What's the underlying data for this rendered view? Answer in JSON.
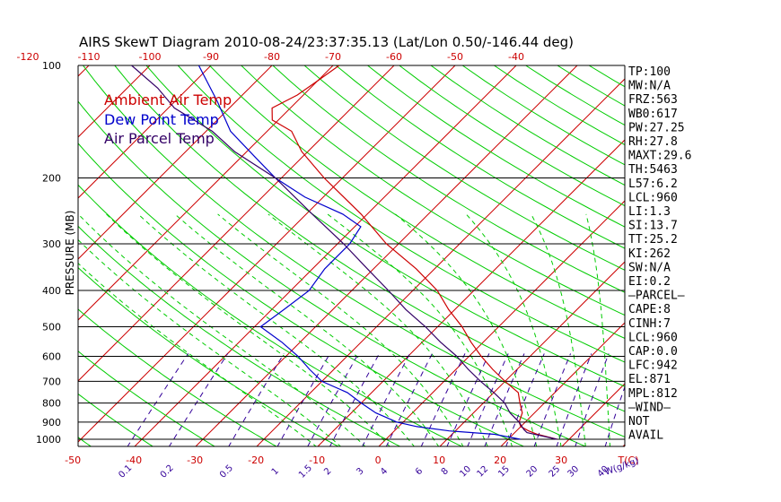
{
  "chart_data": {
    "type": "line",
    "title": "AIRS SkewT Diagram 2010-08-24/23:37:35.13 (Lat/Lon 0.50/-146.44 deg)",
    "ylabel": "PRESSURE (MB)",
    "xlabel": "T(C)",
    "mixing_ratio_label": "W(g/kg)",
    "pressure_axis": "log",
    "ylim": [
      1050,
      100
    ],
    "pressure_ticks": [
      100,
      200,
      300,
      400,
      500,
      600,
      700,
      800,
      900,
      1000
    ],
    "bottom_temperature_ticks": [
      -50,
      -40,
      -30,
      -20,
      -10,
      0,
      10,
      20,
      30
    ],
    "top_temperature_ticks": [
      -120,
      -110,
      -100,
      -90,
      -80,
      -70,
      -60,
      -50,
      -40
    ],
    "mixing_ratio_ticks": [
      "0.1",
      "0.2",
      "0.5",
      "1",
      "1.5",
      "2",
      "3",
      "4",
      "6",
      "8",
      "10",
      "12",
      "15",
      "20",
      "25",
      "30",
      "40"
    ],
    "legend": [
      "Ambient Air Temp",
      "Dew Point Temp",
      "Air Parcel Temp"
    ],
    "legend_position": "top-left",
    "colors": {
      "ambient": "#cc0000",
      "dewpoint": "#0000cc",
      "parcel": "#330066",
      "isotherm": "#cc0000",
      "dry_adiabat": "#00cc00",
      "moist_adiabat": "#00cc00",
      "mixing_ratio": "#330099",
      "axis_labels": "#cc0000",
      "mixing_labels": "#330099",
      "pressure_lines": "#000000"
    },
    "series": [
      {
        "name": "Ambient Air Temp",
        "points": [
          [
            1000,
            28
          ],
          [
            970,
            24
          ],
          [
            950,
            22
          ],
          [
            925,
            20
          ],
          [
            900,
            19
          ],
          [
            850,
            18
          ],
          [
            800,
            16
          ],
          [
            750,
            14
          ],
          [
            700,
            10
          ],
          [
            650,
            6
          ],
          [
            600,
            2
          ],
          [
            550,
            -2
          ],
          [
            500,
            -6
          ],
          [
            450,
            -11
          ],
          [
            400,
            -16
          ],
          [
            350,
            -23
          ],
          [
            300,
            -32
          ],
          [
            250,
            -41
          ],
          [
            200,
            -53
          ],
          [
            170,
            -61
          ],
          [
            150,
            -66
          ],
          [
            140,
            -71
          ],
          [
            130,
            -73
          ],
          [
            120,
            -71
          ],
          [
            110,
            -70
          ],
          [
            100,
            -69
          ]
        ]
      },
      {
        "name": "Dew Point Temp",
        "points": [
          [
            1000,
            22
          ],
          [
            970,
            17
          ],
          [
            950,
            9
          ],
          [
            925,
            3
          ],
          [
            900,
            -1
          ],
          [
            850,
            -6
          ],
          [
            800,
            -10
          ],
          [
            750,
            -14
          ],
          [
            700,
            -20
          ],
          [
            650,
            -24
          ],
          [
            600,
            -28
          ],
          [
            550,
            -33
          ],
          [
            500,
            -39
          ],
          [
            450,
            -38
          ],
          [
            400,
            -37
          ],
          [
            350,
            -38
          ],
          [
            300,
            -38
          ],
          [
            270,
            -39
          ],
          [
            250,
            -44
          ],
          [
            225,
            -53
          ],
          [
            200,
            -61
          ],
          [
            175,
            -68
          ],
          [
            150,
            -76
          ],
          [
            125,
            -83
          ],
          [
            100,
            -92
          ]
        ]
      },
      {
        "name": "Air Parcel Temp",
        "points": [
          [
            1000,
            28
          ],
          [
            960,
            22
          ],
          [
            942,
            21
          ],
          [
            900,
            19
          ],
          [
            850,
            16
          ],
          [
            800,
            13.5
          ],
          [
            750,
            10
          ],
          [
            700,
            6
          ],
          [
            650,
            2
          ],
          [
            600,
            -2
          ],
          [
            550,
            -7
          ],
          [
            500,
            -12
          ],
          [
            450,
            -18
          ],
          [
            400,
            -24
          ],
          [
            350,
            -31
          ],
          [
            300,
            -39
          ],
          [
            250,
            -49
          ],
          [
            200,
            -61
          ],
          [
            170,
            -72
          ],
          [
            150,
            -79
          ],
          [
            130,
            -89
          ],
          [
            115,
            -95
          ],
          [
            100,
            -103
          ]
        ]
      }
    ]
  },
  "indices": [
    "TP:100",
    "MW:N/A",
    "FRZ:563",
    "WB0:617",
    "PW:27.25",
    "RH:27.8",
    "MAXT:29.6",
    "TH:5463",
    "L57:6.2",
    "LCL:960",
    "LI:1.3",
    "SI:13.7",
    "TT:25.2",
    "KI:262",
    "SW:N/A",
    "EI:0.2",
    "—PARCEL—",
    "CAPE:8",
    "CINH:7",
    "LCL:960",
    "CAP:0.0",
    "LFC:942",
    "EL:871",
    "MPL:812",
    "—WIND—",
    "NOT",
    "AVAIL"
  ]
}
